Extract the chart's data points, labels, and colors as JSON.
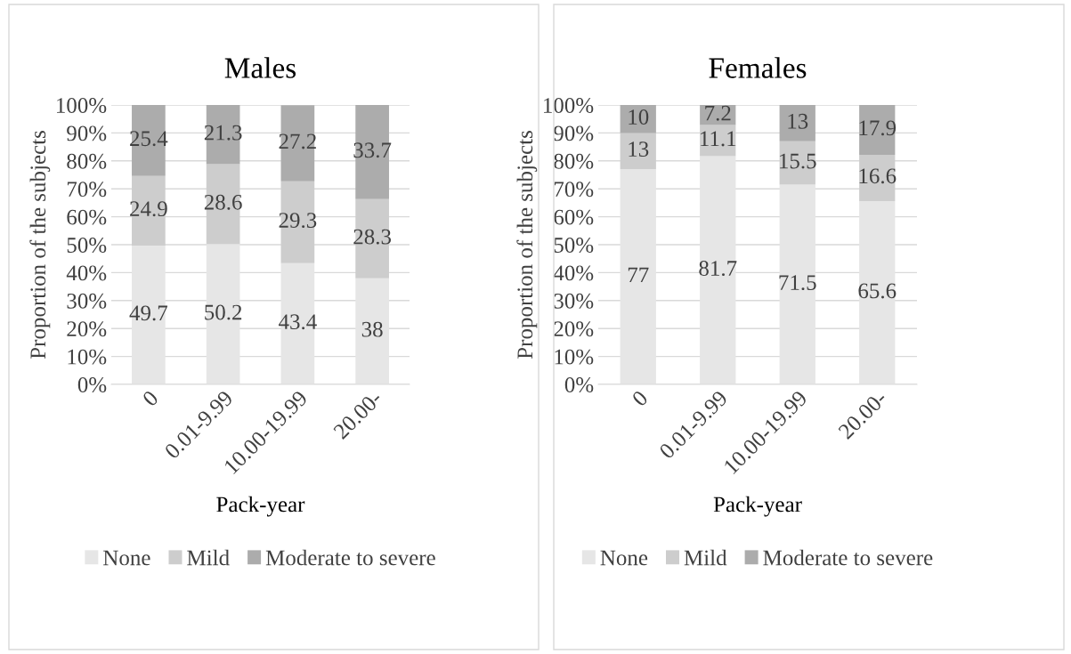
{
  "chart_data": [
    {
      "type": "bar",
      "stacked": true,
      "title": "Males",
      "xlabel": "Pack-year",
      "ylabel": "Proportion of the subjects",
      "categories": [
        "0",
        "0.01-9.99",
        "10.00-19.99",
        "20.00-"
      ],
      "series": [
        {
          "name": "None",
          "color": "#e6e6e6",
          "values": [
            49.7,
            50.2,
            43.4,
            38
          ]
        },
        {
          "name": "Mild",
          "color": "#cdcdcd",
          "values": [
            24.9,
            28.6,
            29.3,
            28.3
          ]
        },
        {
          "name": "Moderate to severe",
          "color": "#acacac",
          "values": [
            25.4,
            21.3,
            27.2,
            33.7
          ]
        }
      ],
      "ylim": [
        0,
        100
      ],
      "yticks": [
        {
          "value": 0,
          "label": "0%"
        },
        {
          "value": 10,
          "label": "10%"
        },
        {
          "value": 20,
          "label": "20%"
        },
        {
          "value": 30,
          "label": "30%"
        },
        {
          "value": 40,
          "label": "40%"
        },
        {
          "value": 50,
          "label": "50%"
        },
        {
          "value": 60,
          "label": "60%"
        },
        {
          "value": 70,
          "label": "70%"
        },
        {
          "value": 80,
          "label": "80%"
        },
        {
          "value": 90,
          "label": "90%"
        },
        {
          "value": 100,
          "label": "100%"
        }
      ],
      "grid": "y",
      "legend": "bottom",
      "data_labels": true
    },
    {
      "type": "bar",
      "stacked": true,
      "title": "Females",
      "xlabel": "Pack-year",
      "ylabel": "Proportion of the subjects",
      "categories": [
        "0",
        "0.01-9.99",
        "10.00-19.99",
        "20.00-"
      ],
      "series": [
        {
          "name": "None",
          "color": "#e6e6e6",
          "values": [
            77,
            81.7,
            71.5,
            65.6
          ]
        },
        {
          "name": "Mild",
          "color": "#cdcdcd",
          "values": [
            13,
            11.1,
            15.5,
            16.6
          ]
        },
        {
          "name": "Moderate to severe",
          "color": "#acacac",
          "values": [
            10,
            7.2,
            13,
            17.9
          ]
        }
      ],
      "ylim": [
        0,
        100
      ],
      "yticks": [
        {
          "value": 0,
          "label": "0%"
        },
        {
          "value": 10,
          "label": "10%"
        },
        {
          "value": 20,
          "label": "20%"
        },
        {
          "value": 30,
          "label": "30%"
        },
        {
          "value": 40,
          "label": "40%"
        },
        {
          "value": 50,
          "label": "50%"
        },
        {
          "value": 60,
          "label": "60%"
        },
        {
          "value": 70,
          "label": "70%"
        },
        {
          "value": 80,
          "label": "80%"
        },
        {
          "value": 90,
          "label": "90%"
        },
        {
          "value": 100,
          "label": "100%"
        }
      ],
      "grid": "y",
      "legend": "bottom",
      "data_labels": true
    }
  ]
}
